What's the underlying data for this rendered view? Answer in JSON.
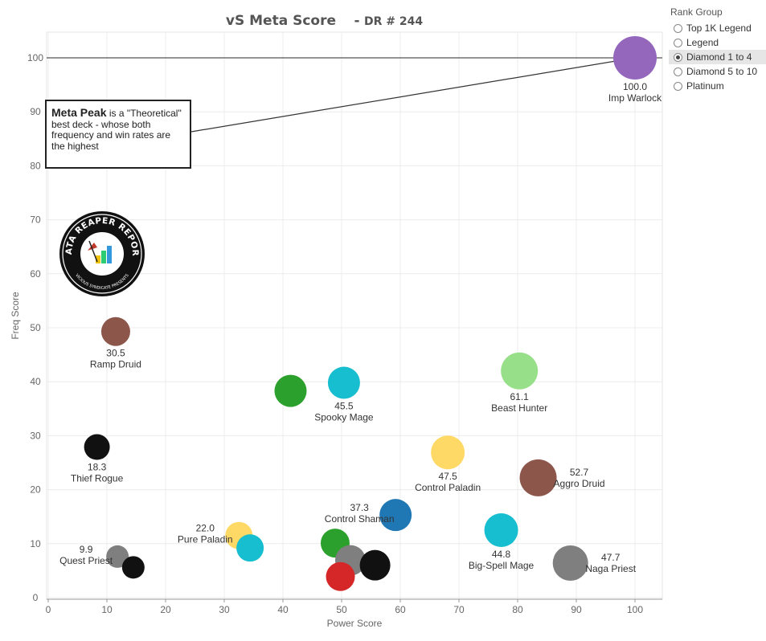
{
  "chart_data": {
    "type": "scatter",
    "title": "vS Meta Score",
    "subtitle": "DR # 244",
    "xlabel": "Power Score",
    "ylabel": "Freq Score",
    "xlim": [
      0,
      105
    ],
    "ylim": [
      -1,
      105
    ],
    "x_ticks": [
      0,
      10,
      20,
      30,
      40,
      50,
      60,
      70,
      80,
      90,
      100
    ],
    "y_ticks": [
      0,
      10,
      20,
      30,
      40,
      50,
      60,
      70,
      80,
      90,
      100
    ],
    "grid": true,
    "reference_line_y": 100,
    "points": [
      {
        "name": "Imp Warlock",
        "score": "100.0",
        "x": 100.0,
        "y": 100.0,
        "color": "#9467bd",
        "size": 1.35
      },
      {
        "name": "Beast Hunter",
        "score": "61.1",
        "x": 80.3,
        "y": 42.0,
        "color": "#98df8a",
        "size": 1.15
      },
      {
        "name": "Ramp Druid",
        "score": "30.5",
        "x": 11.5,
        "y": 49.3,
        "color": "#8c564b",
        "size": 0.9
      },
      {
        "name": "Spooky Mage",
        "score": "45.5",
        "x": 50.4,
        "y": 39.8,
        "color": "#17becf",
        "size": 1.0
      },
      {
        "name": "",
        "score": "",
        "x": 41.3,
        "y": 38.3,
        "color": "#2ca02c",
        "size": 1.0
      },
      {
        "name": "Thief Rogue",
        "score": "18.3",
        "x": 8.3,
        "y": 27.9,
        "color": "#111111",
        "size": 0.8
      },
      {
        "name": "Control Paladin",
        "score": "47.5",
        "x": 68.1,
        "y": 26.9,
        "color": "#ffd966",
        "size": 1.05
      },
      {
        "name": "Aggro Druid",
        "score": "52.7",
        "x": 83.5,
        "y": 22.2,
        "color": "#8c564b",
        "size": 1.15
      },
      {
        "name": "Control Shaman",
        "score": "37.3",
        "x": 59.2,
        "y": 15.3,
        "color": "#1f77b4",
        "size": 1.0
      },
      {
        "name": "Big-Spell Mage",
        "score": "44.8",
        "x": 77.2,
        "y": 12.5,
        "color": "#17becf",
        "size": 1.05
      },
      {
        "name": "Pure Paladin",
        "score": "22.0",
        "x": 32.5,
        "y": 11.5,
        "color": "#ffd966",
        "size": 0.85
      },
      {
        "name": "",
        "score": "",
        "x": 34.4,
        "y": 9.2,
        "color": "#17becf",
        "size": 0.85
      },
      {
        "name": "",
        "score": "",
        "x": 48.9,
        "y": 10.1,
        "color": "#2ca02c",
        "size": 0.9
      },
      {
        "name": "Quest Priest",
        "score": "9.9",
        "x": 11.8,
        "y": 7.6,
        "color": "#7f7f7f",
        "size": 0.7
      },
      {
        "name": "",
        "score": "",
        "x": 14.5,
        "y": 5.6,
        "color": "#111111",
        "size": 0.7
      },
      {
        "name": "",
        "score": "",
        "x": 51.5,
        "y": 6.9,
        "color": "#7f7f7f",
        "size": 0.95
      },
      {
        "name": "",
        "score": "",
        "x": 55.7,
        "y": 6.0,
        "color": "#111111",
        "size": 0.95
      },
      {
        "name": "",
        "score": "",
        "x": 49.8,
        "y": 3.9,
        "color": "#d62728",
        "size": 0.9
      },
      {
        "name": "Naga Priest",
        "score": "47.7",
        "x": 89.0,
        "y": 6.4,
        "color": "#7f7f7f",
        "size": 1.1
      }
    ]
  },
  "annotation": {
    "bold": "Meta Peak",
    "text": " is a \"Theoretical\" best deck - whose both frequency and win rates are the highest"
  },
  "logo": {
    "top_text": "DATA REAPER REPORT",
    "bottom_text": "VICIOUS SYNDICATE PRESENTS"
  },
  "legend": {
    "title": "Rank Group",
    "options": [
      "Top 1K Legend",
      "Legend",
      "Diamond 1 to 4",
      "Diamond 5 to 10",
      "Platinum"
    ],
    "selected": "Diamond 1 to 4"
  }
}
